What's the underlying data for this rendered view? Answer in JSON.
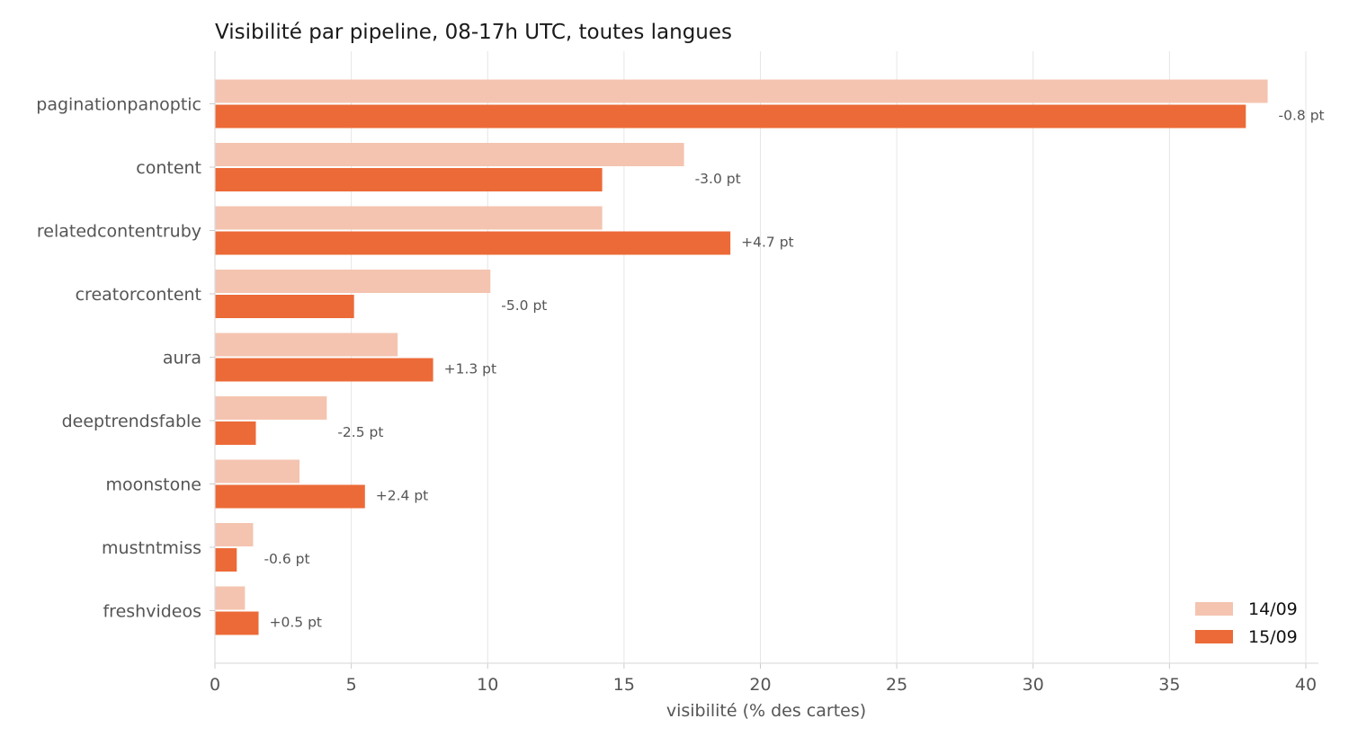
{
  "chart_data": {
    "type": "bar",
    "orientation": "horizontal",
    "title": "Visibilité par pipeline, 08-17h UTC, toutes langues",
    "xlabel": "visibilité (% des cartes)",
    "ylabel": "",
    "xlim": [
      0,
      40.5
    ],
    "xticks": [
      0,
      5,
      10,
      15,
      20,
      25,
      30,
      35,
      40
    ],
    "grid": "vertical",
    "legend_position": "bottom-right",
    "categories": [
      "paginationpanoptic",
      "content",
      "relatedcontentruby",
      "creatorcontent",
      "aura",
      "deeptrendsfable",
      "moonstone",
      "mustntmiss",
      "freshvideos"
    ],
    "series": [
      {
        "name": "14/09",
        "color": "#f4c4b0",
        "values": [
          38.6,
          17.2,
          14.2,
          10.1,
          6.7,
          4.1,
          3.1,
          1.4,
          1.1
        ]
      },
      {
        "name": "15/09",
        "color": "#ec6a37",
        "values": [
          37.8,
          14.2,
          18.9,
          5.1,
          8.0,
          1.5,
          5.5,
          0.8,
          1.6
        ]
      }
    ],
    "deltas": [
      "-0.8 pt",
      "-3.0 pt",
      "+4.7 pt",
      "-5.0 pt",
      "+1.3 pt",
      "-2.5 pt",
      "+2.4 pt",
      "-0.6 pt",
      "+0.5 pt"
    ]
  }
}
